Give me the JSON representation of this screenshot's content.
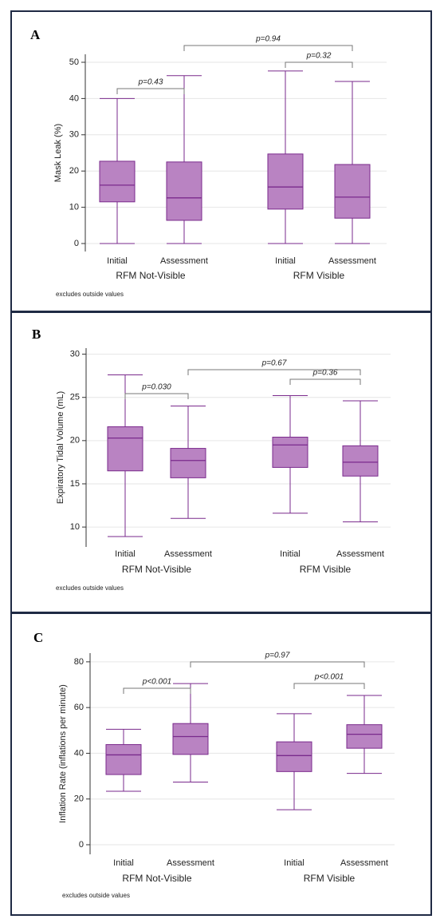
{
  "chart_data": [
    {
      "type": "box",
      "panel": "A",
      "ylabel": "Mask Leak  (%)",
      "categories": [
        "Initial",
        "Assessment",
        "Initial",
        "Assessment"
      ],
      "groups": [
        "RFM Not-Visible",
        "RFM Visible"
      ],
      "boxes": [
        {
          "min": 0,
          "q1": 11.5,
          "median": 16.1,
          "q3": 22.7,
          "max": 40
        },
        {
          "min": 0,
          "q1": 6.4,
          "median": 12.6,
          "q3": 22.5,
          "max": 46.3
        },
        {
          "min": 0,
          "q1": 9.5,
          "median": 15.6,
          "q3": 24.7,
          "max": 47.6
        },
        {
          "min": 0,
          "q1": 7.0,
          "median": 12.8,
          "q3": 21.8,
          "max": 44.7
        }
      ],
      "annotations": [
        "p=0.43",
        "p=0.94",
        "p=0.32"
      ],
      "note": "excludes outside values",
      "color": "#b983c2",
      "edge_color": "#7a2a8c",
      "ylim": [
        -2.2,
        52.2
      ],
      "yticks": [
        0,
        10,
        20,
        30,
        40,
        50
      ],
      "grid": true
    },
    {
      "type": "box",
      "panel": "B",
      "ylabel": "Expiratory Tidal Volume (mL)",
      "categories": [
        "Initial",
        "Assessment",
        "Initial",
        "Assessment"
      ],
      "groups": [
        "RFM Not-Visible",
        "RFM Visible"
      ],
      "boxes": [
        {
          "min": 8.9,
          "q1": 16.5,
          "median": 20.3,
          "q3": 21.6,
          "max": 27.6
        },
        {
          "min": 11.0,
          "q1": 15.7,
          "median": 17.7,
          "q3": 19.1,
          "max": 24.0
        },
        {
          "min": 11.6,
          "q1": 16.9,
          "median": 19.5,
          "q3": 20.4,
          "max": 25.2
        },
        {
          "min": 10.6,
          "q1": 15.9,
          "median": 17.5,
          "q3": 19.4,
          "max": 24.6
        }
      ],
      "annotations": [
        "p=0.030",
        "p=0.67",
        "p=0.36"
      ],
      "note": "excludes outside values",
      "color": "#b983c2",
      "edge_color": "#7a2a8c",
      "ylim": [
        7.7,
        30.7
      ],
      "yticks": [
        10,
        15,
        20,
        25,
        30
      ],
      "grid": true
    },
    {
      "type": "box",
      "panel": "C",
      "ylabel": "Inflation Rate  (inflations per minute)",
      "categories": [
        "Initial",
        "Assessment",
        "Initial",
        "Assessment"
      ],
      "groups": [
        "RFM Not-Visible",
        "RFM Visible"
      ],
      "boxes": [
        {
          "min": 23.4,
          "q1": 30.7,
          "median": 39.3,
          "q3": 43.8,
          "max": 50.5
        },
        {
          "min": 27.4,
          "q1": 39.5,
          "median": 47.3,
          "q3": 53.0,
          "max": 70.5
        },
        {
          "min": 15.3,
          "q1": 32.0,
          "median": 39.0,
          "q3": 45.0,
          "max": 57.3
        },
        {
          "min": 31.2,
          "q1": 42.2,
          "median": 48.3,
          "q3": 52.5,
          "max": 65.3
        }
      ],
      "annotations": [
        "p<0.001",
        "p=0.97",
        "p<0.001"
      ],
      "note": "excludes outside values",
      "color": "#b983c2",
      "edge_color": "#7a2a8c",
      "ylim": [
        -4.2,
        83.8
      ],
      "yticks": [
        0,
        20,
        40,
        60,
        80
      ],
      "grid": true
    }
  ]
}
